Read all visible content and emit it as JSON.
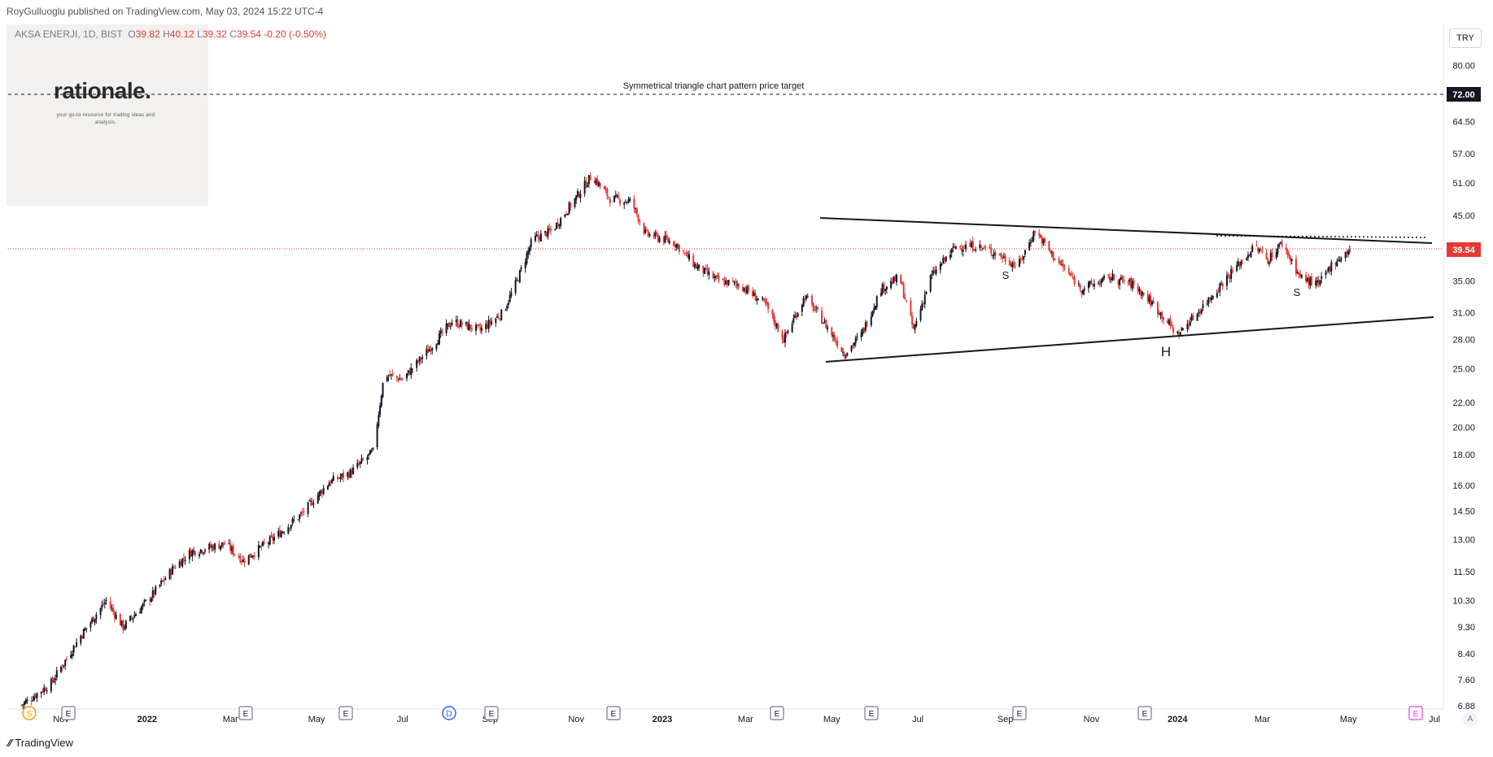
{
  "header": {
    "published": "RoyGulluoglu published on TradingView.com, May 03, 2024 15:22 UTC-4"
  },
  "legend": {
    "symbol": "AKSA ENERJI, 1D, BIST",
    "o_label": "O",
    "o": "39.82",
    "h_label": "H",
    "h": "40.12",
    "l_label": "L",
    "l": "39.32",
    "c_label": "C",
    "c": "39.54",
    "change": "-0.20 (-0.50%)"
  },
  "logo": {
    "word": "rationale.",
    "tagline": "your go-to resource for trading ideas and analysis."
  },
  "currency_label": "TRY",
  "annotations": {
    "target_label": "Symmetrical triangle chart pattern price target",
    "s_left": "S",
    "head": "H",
    "s_right": "S"
  },
  "footer": {
    "brand": "TradingView",
    "auto": "A"
  },
  "colors": {
    "up": "#131722",
    "down": "#e53935",
    "last_price_bg": "#e53935",
    "target_bg": "#131722",
    "dividend": "#2962ff",
    "split": "#ff9800",
    "earn_future": "#e040fb"
  },
  "chart_data": {
    "type": "candlestick",
    "scale": "log",
    "ylim": [
      6.8,
      95
    ],
    "y_ticks": [
      "80.00",
      "64.50",
      "57.00",
      "51.00",
      "45.00",
      "35.00",
      "31.00",
      "28.00",
      "25.00",
      "22.00",
      "20.00",
      "18.00",
      "16.00",
      "14.50",
      "13.00",
      "11.50",
      "10.30",
      "9.30",
      "8.40",
      "7.60",
      "6.88"
    ],
    "x_ticks": [
      {
        "label": "Nov",
        "bold": false
      },
      {
        "label": "2022",
        "bold": true
      },
      {
        "label": "Mar",
        "bold": false
      },
      {
        "label": "May",
        "bold": false
      },
      {
        "label": "Jul",
        "bold": false
      },
      {
        "label": "Sep",
        "bold": false
      },
      {
        "label": "Nov",
        "bold": false
      },
      {
        "label": "2023",
        "bold": true
      },
      {
        "label": "Mar",
        "bold": false
      },
      {
        "label": "May",
        "bold": false
      },
      {
        "label": "Jul",
        "bold": false
      },
      {
        "label": "Sep",
        "bold": false
      },
      {
        "label": "Nov",
        "bold": false
      },
      {
        "label": "2024",
        "bold": true
      },
      {
        "label": "Mar",
        "bold": false
      },
      {
        "label": "May",
        "bold": false
      },
      {
        "label": "Jul",
        "bold": false
      }
    ],
    "last_price": "39.54",
    "target_price": "72.00",
    "events": [
      "S",
      "E",
      "E",
      "E",
      "D",
      "E",
      "E",
      "E",
      "E",
      "E",
      "E",
      "E"
    ],
    "close_path": [
      [
        "2021-10-04",
        6.9
      ],
      [
        "2021-10-25",
        7.5
      ],
      [
        "2021-11-15",
        9.0
      ],
      [
        "2021-12-03",
        10.3
      ],
      [
        "2021-12-15",
        9.3
      ],
      [
        "2022-01-03",
        10.4
      ],
      [
        "2022-01-20",
        11.7
      ],
      [
        "2022-02-01",
        12.4
      ],
      [
        "2022-02-25",
        12.8
      ],
      [
        "2022-03-10",
        12.0
      ],
      [
        "2022-04-01",
        13.1
      ],
      [
        "2022-04-20",
        14.3
      ],
      [
        "2022-05-10",
        16.2
      ],
      [
        "2022-05-25",
        16.8
      ],
      [
        "2022-06-10",
        18.2
      ],
      [
        "2022-06-18",
        24.5
      ],
      [
        "2022-07-01",
        24.0
      ],
      [
        "2022-07-20",
        27.0
      ],
      [
        "2022-08-05",
        30.0
      ],
      [
        "2022-08-25",
        29.0
      ],
      [
        "2022-09-10",
        31.0
      ],
      [
        "2022-09-20",
        35.0
      ],
      [
        "2022-10-01",
        41.0
      ],
      [
        "2022-10-15",
        42.5
      ],
      [
        "2022-10-30",
        47.5
      ],
      [
        "2022-11-12",
        52.5
      ],
      [
        "2022-11-25",
        48.0
      ],
      [
        "2022-12-10",
        47.5
      ],
      [
        "2022-12-20",
        42.0
      ],
      [
        "2023-01-10",
        40.5
      ],
      [
        "2023-01-25",
        37.0
      ],
      [
        "2023-02-10",
        35.0
      ],
      [
        "2023-02-25",
        34.5
      ],
      [
        "2023-03-15",
        32.0
      ],
      [
        "2023-03-28",
        28.0
      ],
      [
        "2023-04-12",
        33.0
      ],
      [
        "2023-04-25",
        30.0
      ],
      [
        "2023-05-10",
        26.5
      ],
      [
        "2023-05-22",
        28.5
      ],
      [
        "2023-06-05",
        34.0
      ],
      [
        "2023-06-18",
        35.5
      ],
      [
        "2023-06-28",
        29.0
      ],
      [
        "2023-07-10",
        35.5
      ],
      [
        "2023-07-28",
        40.0
      ],
      [
        "2023-08-12",
        40.0
      ],
      [
        "2023-08-25",
        39.0
      ],
      [
        "2023-09-10",
        37.0
      ],
      [
        "2023-09-22",
        42.5
      ],
      [
        "2023-10-05",
        38.5
      ],
      [
        "2023-10-25",
        34.0
      ],
      [
        "2023-11-15",
        35.5
      ],
      [
        "2023-12-01",
        34.5
      ],
      [
        "2023-12-15",
        32.0
      ],
      [
        "2024-01-01",
        28.5
      ],
      [
        "2024-01-15",
        31.0
      ],
      [
        "2024-02-05",
        35.5
      ],
      [
        "2024-02-25",
        40.0
      ],
      [
        "2024-03-05",
        38.0
      ],
      [
        "2024-03-15",
        40.5
      ],
      [
        "2024-03-28",
        35.5
      ],
      [
        "2024-04-10",
        34.5
      ],
      [
        "2024-04-20",
        37.5
      ],
      [
        "2024-05-03",
        39.54
      ]
    ]
  }
}
